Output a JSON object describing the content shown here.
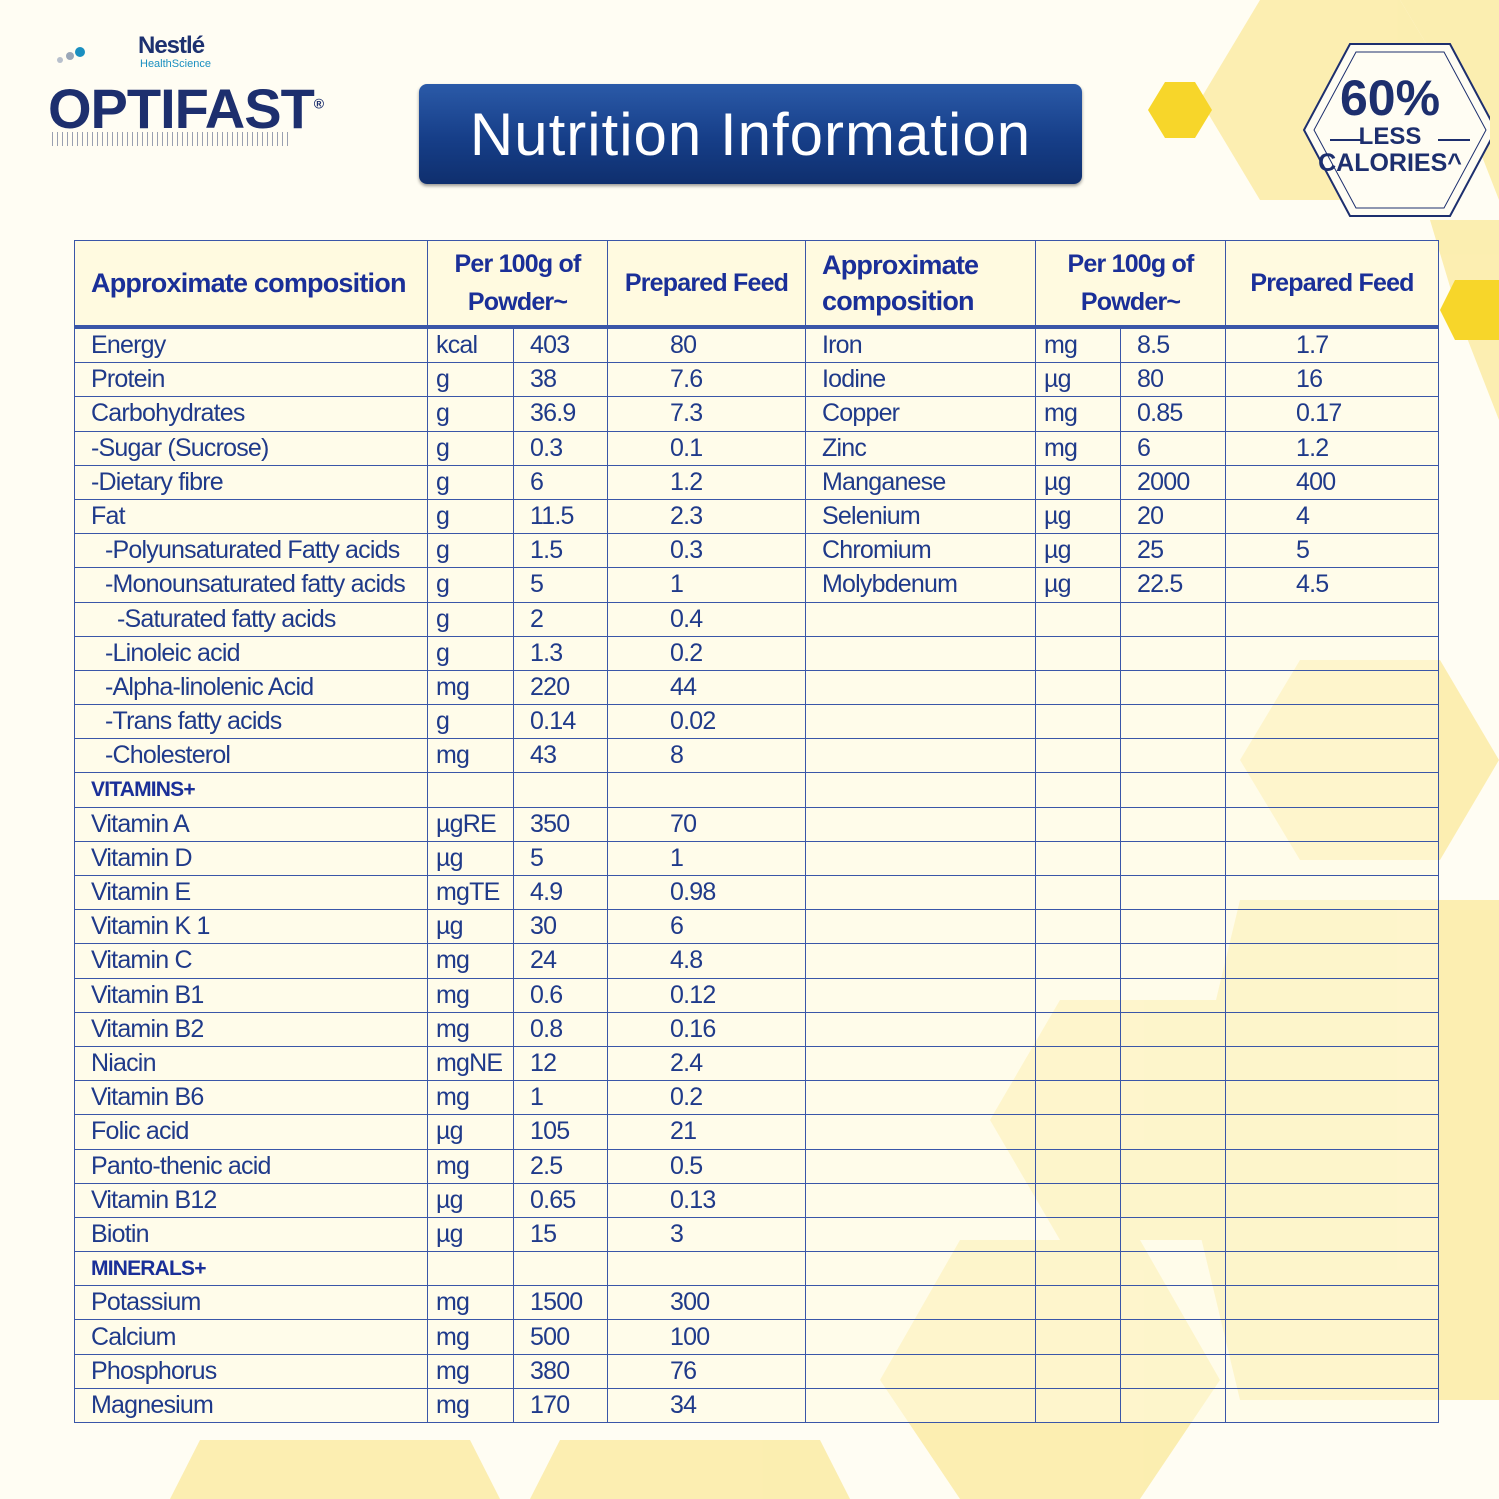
{
  "brand": {
    "company": "Nestlé",
    "division": "HealthScience",
    "product": "OPTIFAST",
    "registered": "®"
  },
  "title": "Nutrition Information",
  "badge": {
    "percent": "60%",
    "line1": "LESS",
    "line2": "CALORIES^"
  },
  "colors": {
    "navy": "#1d2f6e",
    "table_text": "#1f3a8a",
    "title_bg": "#163e88",
    "honeycomb": "#f7dc4a",
    "background": "#fffdf3"
  },
  "headers": {
    "composition": "Approximate composition",
    "per100": "Per 100g of Powder~",
    "prepared": "Prepared Feed"
  },
  "left_rows": [
    {
      "name": "Energy",
      "unit": "kcal",
      "per100": "403",
      "prepared": "80",
      "indent": 0
    },
    {
      "name": "Protein",
      "unit": "g",
      "per100": "38",
      "prepared": "7.6",
      "indent": 0
    },
    {
      "name": "Carbohydrates",
      "unit": "g",
      "per100": "36.9",
      "prepared": "7.3",
      "indent": 0
    },
    {
      "name": "-Sugar (Sucrose)",
      "unit": "g",
      "per100": "0.3",
      "prepared": "0.1",
      "indent": 0
    },
    {
      "name": "-Dietary fibre",
      "unit": "g",
      "per100": "6",
      "prepared": "1.2",
      "indent": 0
    },
    {
      "name": "Fat",
      "unit": "g",
      "per100": "11.5",
      "prepared": "2.3",
      "indent": 0
    },
    {
      "name": "-Polyunsaturated Fatty acids",
      "unit": "g",
      "per100": "1.5",
      "prepared": "0.3",
      "indent": 1
    },
    {
      "name": "-Monounsaturated fatty acids",
      "unit": "g",
      "per100": "5",
      "prepared": "1",
      "indent": 1
    },
    {
      "name": "-Saturated fatty acids",
      "unit": "g",
      "per100": "2",
      "prepared": "0.4",
      "indent": 2
    },
    {
      "name": "-Linoleic acid",
      "unit": "g",
      "per100": "1.3",
      "prepared": "0.2",
      "indent": 1
    },
    {
      "name": "-Alpha-linolenic Acid",
      "unit": "mg",
      "per100": "220",
      "prepared": "44",
      "indent": 1
    },
    {
      "name": "-Trans fatty acids",
      "unit": "g",
      "per100": "0.14",
      "prepared": "0.02",
      "indent": 1
    },
    {
      "name": "-Cholesterol",
      "unit": "mg",
      "per100": "43",
      "prepared": "8",
      "indent": 1
    },
    {
      "name": "VITAMINS+",
      "section": true
    },
    {
      "name": "Vitamin A",
      "unit": "µgRE",
      "per100": "350",
      "prepared": "70",
      "indent": 0
    },
    {
      "name": "Vitamin D",
      "unit": "µg",
      "per100": "5",
      "prepared": "1",
      "indent": 0
    },
    {
      "name": "Vitamin E",
      "unit": "mgTE",
      "per100": "4.9",
      "prepared": "0.98",
      "indent": 0
    },
    {
      "name": "Vitamin K 1",
      "unit": "µg",
      "per100": "30",
      "prepared": "6",
      "indent": 0
    },
    {
      "name": "Vitamin C",
      "unit": "mg",
      "per100": "24",
      "prepared": "4.8",
      "indent": 0
    },
    {
      "name": "Vitamin B1",
      "unit": "mg",
      "per100": "0.6",
      "prepared": "0.12",
      "indent": 0
    },
    {
      "name": "Vitamin B2",
      "unit": "mg",
      "per100": "0.8",
      "prepared": "0.16",
      "indent": 0
    },
    {
      "name": "Niacin",
      "unit": "mgNE",
      "per100": "12",
      "prepared": "2.4",
      "indent": 0
    },
    {
      "name": "Vitamin B6",
      "unit": "mg",
      "per100": "1",
      "prepared": "0.2",
      "indent": 0
    },
    {
      "name": "Folic acid",
      "unit": "µg",
      "per100": "105",
      "prepared": "21",
      "indent": 0
    },
    {
      "name": "Panto-thenic acid",
      "unit": "mg",
      "per100": "2.5",
      "prepared": "0.5",
      "indent": 0
    },
    {
      "name": "Vitamin B12",
      "unit": "µg",
      "per100": "0.65",
      "prepared": "0.13",
      "indent": 0
    },
    {
      "name": "Biotin",
      "unit": "µg",
      "per100": "15",
      "prepared": "3",
      "indent": 0
    },
    {
      "name": "MINERALS+",
      "section": true
    },
    {
      "name": "Potassium",
      "unit": "mg",
      "per100": "1500",
      "prepared": "300",
      "indent": 0
    },
    {
      "name": "Calcium",
      "unit": "mg",
      "per100": "500",
      "prepared": "100",
      "indent": 0
    },
    {
      "name": "Phosphorus",
      "unit": "mg",
      "per100": "380",
      "prepared": "76",
      "indent": 0
    },
    {
      "name": "Magnesium",
      "unit": "mg",
      "per100": "170",
      "prepared": "34",
      "indent": 0
    }
  ],
  "right_rows": [
    {
      "name": "Iron",
      "unit": "mg",
      "per100": "8.5",
      "prepared": "1.7"
    },
    {
      "name": "Iodine",
      "unit": "µg",
      "per100": "80",
      "prepared": "16"
    },
    {
      "name": "Copper",
      "unit": "mg",
      "per100": "0.85",
      "prepared": "0.17"
    },
    {
      "name": "Zinc",
      "unit": "mg",
      "per100": "6",
      "prepared": "1.2"
    },
    {
      "name": "Manganese",
      "unit": "µg",
      "per100": "2000",
      "prepared": "400"
    },
    {
      "name": "Selenium",
      "unit": "µg",
      "per100": "20",
      "prepared": "4"
    },
    {
      "name": "Chromium",
      "unit": "µg",
      "per100": "25",
      "prepared": "5"
    },
    {
      "name": "Molybdenum",
      "unit": "µg",
      "per100": "22.5",
      "prepared": "4.5"
    }
  ]
}
